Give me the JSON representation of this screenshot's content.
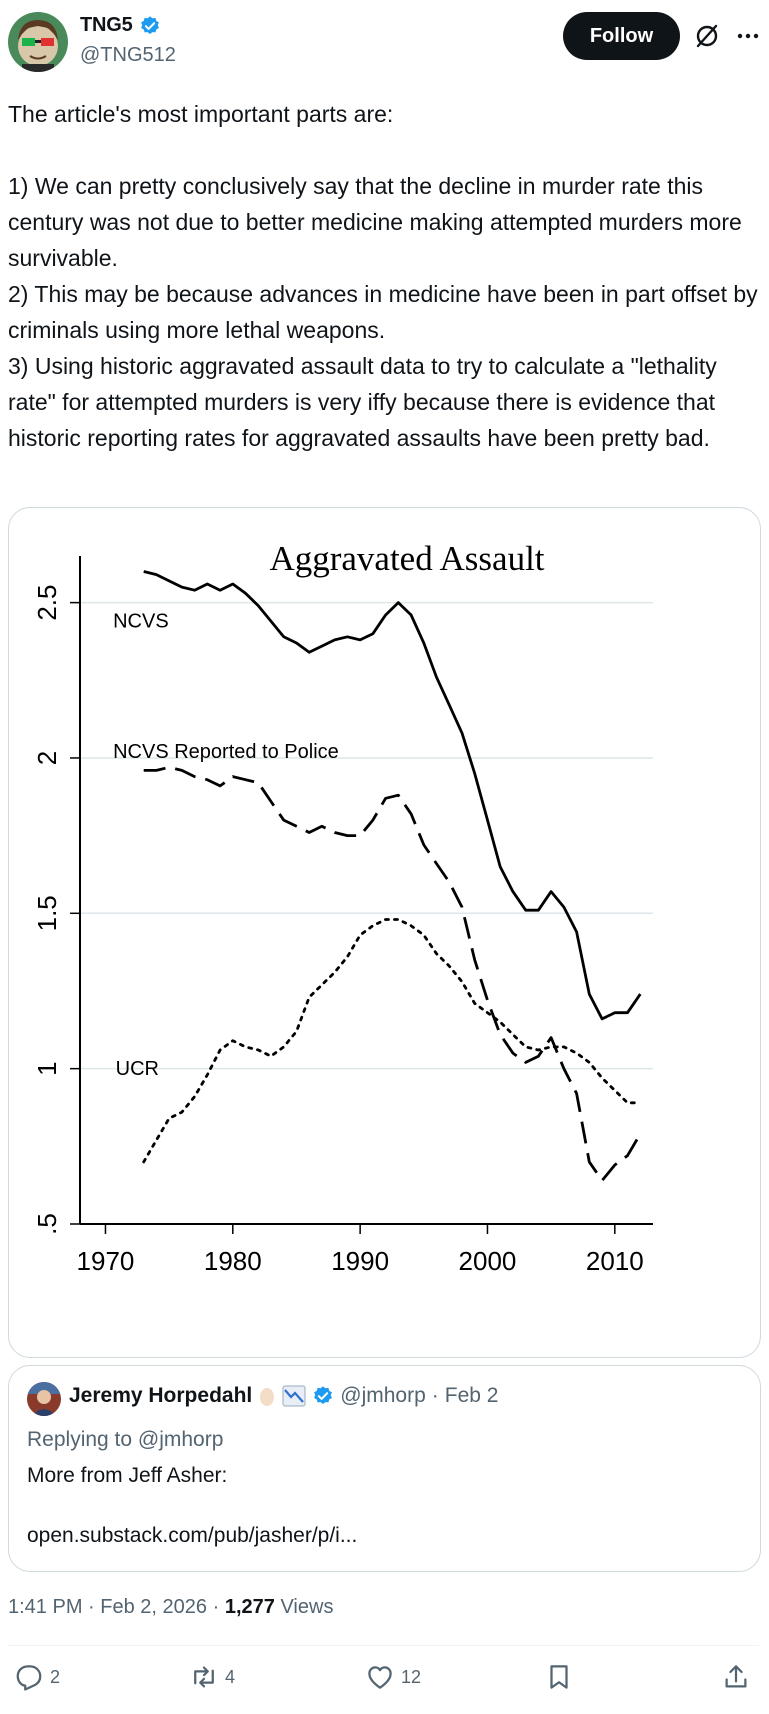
{
  "author": {
    "name": "TNG5",
    "handle": "@TNG512",
    "follow_label": "Follow"
  },
  "tweet": {
    "lines": [
      "The article's most important parts are:",
      "",
      "1) We can pretty conclusively say that the decline in murder rate this century was not due to better medicine making attempted murders more survivable.",
      "2) This may be because advances in medicine have been in part offset by criminals using more lethal weapons.",
      "3) Using historic aggravated assault data to try to calculate a \"lethality rate\" for attempted murders is very iffy because there is evidence that historic reporting rates for aggravated assaults have been pretty bad."
    ]
  },
  "chart_data": {
    "type": "line",
    "title": "Aggravated Assault",
    "xlabel": "",
    "ylabel": "",
    "xlim": [
      1968,
      2013
    ],
    "ylim": [
      0.5,
      2.65
    ],
    "xticks": [
      "1970",
      "1980",
      "1990",
      "2000",
      "2010"
    ],
    "yticks": [
      "2.5",
      "2",
      "1.5",
      "1",
      ".5"
    ],
    "grid": "horizontal",
    "series": [
      {
        "name": "NCVS",
        "style": "solid",
        "x": [
          1973,
          1974,
          1975,
          1976,
          1977,
          1978,
          1979,
          1980,
          1981,
          1982,
          1983,
          1984,
          1985,
          1986,
          1987,
          1988,
          1989,
          1990,
          1991,
          1992,
          1993,
          1994,
          1995,
          1996,
          1997,
          1998,
          1999,
          2000,
          2001,
          2002,
          2003,
          2004,
          2005,
          2006,
          2007,
          2008,
          2009,
          2010,
          2011,
          2012
        ],
        "values": [
          2.6,
          2.59,
          2.57,
          2.55,
          2.54,
          2.56,
          2.54,
          2.56,
          2.53,
          2.49,
          2.44,
          2.39,
          2.37,
          2.34,
          2.36,
          2.38,
          2.39,
          2.38,
          2.4,
          2.46,
          2.5,
          2.46,
          2.37,
          2.26,
          2.17,
          2.08,
          1.95,
          1.8,
          1.65,
          1.57,
          1.51,
          1.51,
          1.57,
          1.52,
          1.44,
          1.24,
          1.16,
          1.18,
          1.18,
          1.24
        ]
      },
      {
        "name": "NCVS Reported to Police",
        "style": "dashed",
        "x": [
          1973,
          1974,
          1975,
          1976,
          1977,
          1978,
          1979,
          1980,
          1981,
          1982,
          1983,
          1984,
          1985,
          1986,
          1987,
          1988,
          1989,
          1990,
          1991,
          1992,
          1993,
          1994,
          1995,
          1996,
          1997,
          1998,
          1999,
          2000,
          2001,
          2002,
          2003,
          2004,
          2005,
          2006,
          2007,
          2008,
          2009,
          2010,
          2011,
          2012
        ],
        "values": [
          1.96,
          1.96,
          1.97,
          1.96,
          1.94,
          1.93,
          1.91,
          1.94,
          1.93,
          1.92,
          1.86,
          1.8,
          1.78,
          1.76,
          1.78,
          1.76,
          1.75,
          1.75,
          1.8,
          1.87,
          1.88,
          1.82,
          1.72,
          1.66,
          1.6,
          1.52,
          1.35,
          1.22,
          1.11,
          1.05,
          1.02,
          1.04,
          1.1,
          1.0,
          0.92,
          0.7,
          0.64,
          0.69,
          0.72,
          0.79
        ]
      },
      {
        "name": "UCR",
        "style": "dotted",
        "x": [
          1973,
          1974,
          1975,
          1976,
          1977,
          1978,
          1979,
          1980,
          1981,
          1982,
          1983,
          1984,
          1985,
          1986,
          1987,
          1988,
          1989,
          1990,
          1991,
          1992,
          1993,
          1994,
          1995,
          1996,
          1997,
          1998,
          1999,
          2000,
          2001,
          2002,
          2003,
          2004,
          2005,
          2006,
          2007,
          2008,
          2009,
          2010,
          2011,
          2012
        ],
        "values": [
          0.7,
          0.77,
          0.84,
          0.86,
          0.91,
          0.98,
          1.06,
          1.09,
          1.07,
          1.06,
          1.04,
          1.07,
          1.12,
          1.23,
          1.27,
          1.31,
          1.36,
          1.43,
          1.46,
          1.48,
          1.48,
          1.46,
          1.43,
          1.37,
          1.33,
          1.28,
          1.21,
          1.18,
          1.15,
          1.11,
          1.07,
          1.06,
          1.07,
          1.07,
          1.05,
          1.02,
          0.97,
          0.93,
          0.89,
          0.89
        ]
      }
    ]
  },
  "quote": {
    "name": "Jeremy Horpedahl",
    "handle": "@jmhorp",
    "separator": "·",
    "date": "Feb 2",
    "replying_to": "Replying to @jmhorp",
    "text": "More from Jeff Asher:",
    "link": "open.substack.com/pub/jasher/p/i..."
  },
  "meta": {
    "time": "1:41 PM",
    "separator": "·",
    "date": "Feb 2, 2026",
    "views": "1,277",
    "views_label": "Views"
  },
  "actions": {
    "replies": "2",
    "reposts": "4",
    "likes": "12"
  },
  "colors": {
    "verified": "#1d9bf0",
    "text": "#0f1419",
    "muted": "#536471",
    "border": "#cfd9de"
  }
}
